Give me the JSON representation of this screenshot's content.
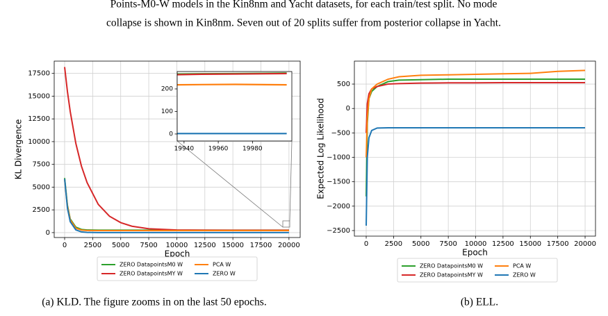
{
  "caption": {
    "lines": [
      "Points-M0-W models in the Kin8nm and Yacht datasets, for each train/test split. No mode",
      "collapse is shown in Kin8nm. Seven out of 20 splits suffer from posterior collapse in Yacht."
    ]
  },
  "subcaptions": [
    "(a) KLD. The figure zooms in on the last 50 epochs.",
    "(b) ELL."
  ],
  "chart_data": [
    {
      "type": "line",
      "xlabel": "Epoch",
      "ylabel": "KL Divergence",
      "x": [
        0,
        250,
        500,
        1000,
        1500,
        2000,
        3000,
        4000,
        5000,
        6000,
        7500,
        10000,
        12500,
        15000,
        17500,
        20000
      ],
      "xlim": [
        -930,
        21000
      ],
      "xticks": [
        0,
        2500,
        5000,
        7500,
        10000,
        12500,
        15000,
        17500,
        20000
      ],
      "ylim": [
        -540,
        18850
      ],
      "yticks": [
        0,
        2500,
        5000,
        7500,
        10000,
        12500,
        15000,
        17500
      ],
      "grid": true,
      "series": [
        {
          "name": "ZERO DatapointsM0 W",
          "color": "#2ca02c",
          "values": [
            6000,
            3000,
            1500,
            600,
            350,
            290,
            275,
            272,
            271,
            270,
            270,
            270,
            270,
            270,
            270,
            270
          ]
        },
        {
          "name": "ZERO DatapointsMY W",
          "color": "#d62728",
          "values": [
            18200,
            15500,
            13300,
            9800,
            7300,
            5500,
            3100,
            1800,
            1100,
            700,
            420,
            290,
            270,
            265,
            262,
            262
          ]
        },
        {
          "name": "PCA W",
          "color": "#ff7f0e",
          "values": [
            5800,
            2900,
            1400,
            500,
            280,
            230,
            220,
            220,
            220,
            220,
            220,
            220,
            220,
            220,
            220,
            220
          ]
        },
        {
          "name": "ZERO W",
          "color": "#1f77b4",
          "values": [
            5900,
            2700,
            1200,
            300,
            80,
            20,
            5,
            3,
            3,
            3,
            3,
            3,
            3,
            3,
            3,
            3
          ]
        }
      ]
    },
    {
      "type": "line",
      "x": [
        19936,
        19950,
        19970,
        20000
      ],
      "xlim": [
        19936,
        20003
      ],
      "xticks": [
        19940,
        19960,
        19980
      ],
      "ylim": [
        -31,
        277
      ],
      "yticks": [
        0,
        100,
        200
      ],
      "grid": false,
      "series": [
        {
          "color": "#2ca02c",
          "values": [
            266,
            267,
            268,
            270
          ]
        },
        {
          "color": "#d62728",
          "values": [
            263,
            265,
            266,
            268
          ]
        },
        {
          "color": "#ff7f0e",
          "values": [
            218,
            219,
            220,
            218
          ]
        },
        {
          "color": "#1f77b4",
          "values": [
            2,
            2,
            2,
            2
          ]
        }
      ]
    },
    {
      "type": "line",
      "xlabel": "Epoch",
      "ylabel": "Expected Log Likelihood",
      "x": [
        0,
        100,
        250,
        500,
        1000,
        2000,
        3000,
        5000,
        7500,
        10000,
        12500,
        15000,
        17500,
        20000
      ],
      "xlim": [
        -1080,
        20950
      ],
      "xticks": [
        0,
        2500,
        5000,
        7500,
        10000,
        12500,
        15000,
        17500,
        20000
      ],
      "ylim": [
        -2614,
        970
      ],
      "yticks": [
        {
          "value": -2500,
          "label": "−2500"
        },
        {
          "value": -2000,
          "label": "−2000"
        },
        {
          "value": -1500,
          "label": "−1500"
        },
        {
          "value": -1000,
          "label": "−1000"
        },
        {
          "value": -500,
          "label": "−500"
        },
        0,
        500
      ],
      "grid": true,
      "series": [
        {
          "name": "ZERO DatapointsM0 W",
          "color": "#2ca02c",
          "values": [
            -1800,
            -300,
            200,
            350,
            450,
            550,
            580,
            590,
            600,
            600,
            600,
            600,
            600,
            600
          ]
        },
        {
          "name": "ZERO DatapointsMY W",
          "color": "#d62728",
          "values": [
            -500,
            100,
            300,
            400,
            450,
            500,
            510,
            520,
            525,
            525,
            530,
            530,
            530,
            530
          ]
        },
        {
          "name": "PCA W",
          "color": "#ff7f0e",
          "values": [
            -1000,
            -200,
            200,
            400,
            500,
            600,
            650,
            680,
            690,
            700,
            710,
            720,
            760,
            780
          ]
        },
        {
          "name": "ZERO W",
          "color": "#1f77b4",
          "values": [
            -2400,
            -1000,
            -600,
            -450,
            -400,
            -395,
            -395,
            -395,
            -395,
            -395,
            -395,
            -395,
            -395,
            -395
          ]
        }
      ]
    }
  ]
}
